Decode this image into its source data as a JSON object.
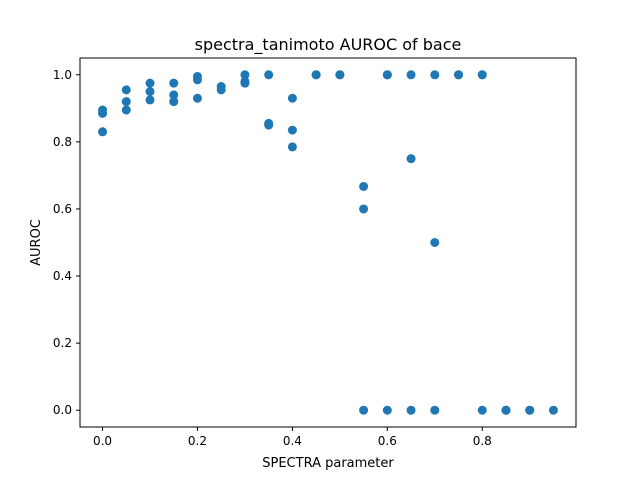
{
  "chart_data": {
    "type": "scatter",
    "title": "spectra_tanimoto AUROC of bace",
    "xlabel": "SPECTRA parameter",
    "ylabel": "AUROC",
    "xlim": [
      -0.0475,
      0.9975
    ],
    "ylim": [
      -0.05,
      1.05
    ],
    "xticks": [
      0.0,
      0.2,
      0.4,
      0.6,
      0.8
    ],
    "xtick_labels": [
      "0.0",
      "0.2",
      "0.4",
      "0.6",
      "0.8"
    ],
    "yticks": [
      0.0,
      0.2,
      0.4,
      0.6,
      0.8,
      1.0
    ],
    "ytick_labels": [
      "0.0",
      "0.2",
      "0.4",
      "0.6",
      "0.8",
      "1.0"
    ],
    "grid": false,
    "marker_color": "#1f77b4",
    "points": [
      {
        "x": 0.0,
        "y": 0.895
      },
      {
        "x": 0.0,
        "y": 0.885
      },
      {
        "x": 0.0,
        "y": 0.83
      },
      {
        "x": 0.05,
        "y": 0.955
      },
      {
        "x": 0.05,
        "y": 0.92
      },
      {
        "x": 0.05,
        "y": 0.895
      },
      {
        "x": 0.1,
        "y": 0.975
      },
      {
        "x": 0.1,
        "y": 0.95
      },
      {
        "x": 0.1,
        "y": 0.925
      },
      {
        "x": 0.15,
        "y": 0.975
      },
      {
        "x": 0.15,
        "y": 0.94
      },
      {
        "x": 0.15,
        "y": 0.92
      },
      {
        "x": 0.2,
        "y": 0.995
      },
      {
        "x": 0.2,
        "y": 0.985
      },
      {
        "x": 0.2,
        "y": 0.93
      },
      {
        "x": 0.25,
        "y": 0.965
      },
      {
        "x": 0.25,
        "y": 0.955
      },
      {
        "x": 0.3,
        "y": 1.0
      },
      {
        "x": 0.3,
        "y": 0.98
      },
      {
        "x": 0.3,
        "y": 0.975
      },
      {
        "x": 0.35,
        "y": 1.0
      },
      {
        "x": 0.35,
        "y": 0.855
      },
      {
        "x": 0.35,
        "y": 0.85
      },
      {
        "x": 0.4,
        "y": 0.93
      },
      {
        "x": 0.4,
        "y": 0.835
      },
      {
        "x": 0.4,
        "y": 0.785
      },
      {
        "x": 0.45,
        "y": 1.0
      },
      {
        "x": 0.45,
        "y": 1.0
      },
      {
        "x": 0.5,
        "y": 1.0
      },
      {
        "x": 0.5,
        "y": 1.0
      },
      {
        "x": 0.55,
        "y": 0.667
      },
      {
        "x": 0.55,
        "y": 0.6
      },
      {
        "x": 0.55,
        "y": 0.0
      },
      {
        "x": 0.6,
        "y": 1.0
      },
      {
        "x": 0.6,
        "y": 1.0
      },
      {
        "x": 0.6,
        "y": 0.0
      },
      {
        "x": 0.65,
        "y": 1.0
      },
      {
        "x": 0.65,
        "y": 0.75
      },
      {
        "x": 0.65,
        "y": 0.0
      },
      {
        "x": 0.7,
        "y": 1.0
      },
      {
        "x": 0.7,
        "y": 0.5
      },
      {
        "x": 0.7,
        "y": 0.0
      },
      {
        "x": 0.75,
        "y": 1.0
      },
      {
        "x": 0.75,
        "y": 1.0
      },
      {
        "x": 0.8,
        "y": 1.0
      },
      {
        "x": 0.8,
        "y": 1.0
      },
      {
        "x": 0.8,
        "y": 0.0
      },
      {
        "x": 0.85,
        "y": 0.0
      },
      {
        "x": 0.85,
        "y": 0.0
      },
      {
        "x": 0.9,
        "y": 0.0
      },
      {
        "x": 0.9,
        "y": 0.0
      },
      {
        "x": 0.95,
        "y": 0.0
      }
    ]
  }
}
